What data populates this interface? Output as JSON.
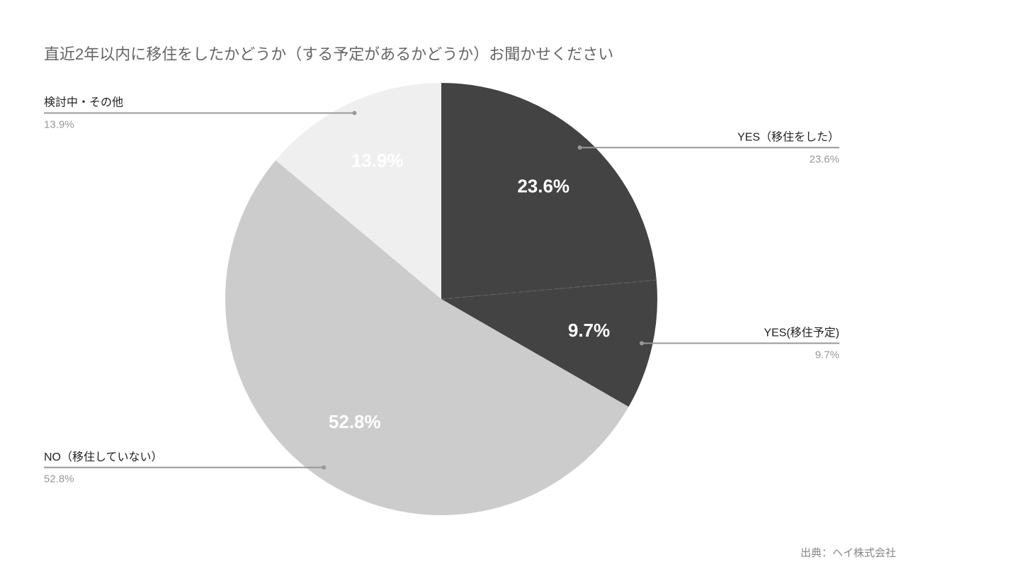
{
  "chart_data": {
    "type": "pie",
    "title": "直近2年以内に移住をしたかどうか（する予定があるかどうか）お聞かせください",
    "categories": [
      "YES（移住をした）",
      "YES(移住予定)",
      "NO（移住していない）",
      "検討中・その他"
    ],
    "values": [
      23.6,
      9.7,
      52.8,
      13.9
    ],
    "value_labels": [
      "23.6%",
      "9.7%",
      "52.8%",
      "13.9%"
    ],
    "colors": [
      "#434343",
      "#434343",
      "#cccccc",
      "#efefef"
    ],
    "source": "出典：ヘイ株式会社"
  }
}
